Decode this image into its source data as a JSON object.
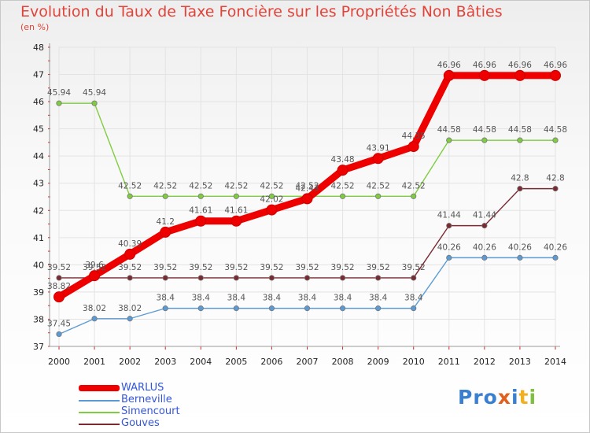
{
  "chart_data": {
    "type": "line",
    "title": "Evolution du Taux de Taxe Foncière sur les Propriétés Non Bâties",
    "subtitle": "(en %)",
    "categories": [
      "2000",
      "2001",
      "2002",
      "2003",
      "2004",
      "2005",
      "2006",
      "2007",
      "2008",
      "2009",
      "2010",
      "2011",
      "2012",
      "2013",
      "2014"
    ],
    "ylim": [
      37,
      48
    ],
    "yticks": [
      "37",
      "38",
      "39",
      "40",
      "41",
      "42",
      "43",
      "44",
      "45",
      "46",
      "47",
      "48"
    ],
    "series": [
      {
        "name": "WARLUS",
        "color": "#ee0000",
        "values": [
          38.82,
          39.6,
          40.39,
          41.2,
          41.61,
          41.61,
          42.02,
          42.43,
          43.48,
          43.91,
          44.35,
          46.96,
          46.96,
          46.96,
          46.96
        ],
        "labels": [
          "38.82",
          "39.6",
          "40.39",
          "41.2",
          "41.61",
          "41.61",
          "42.02",
          "42.43",
          "43.48",
          "43.91",
          "44.35",
          "46.96",
          "46.96",
          "46.96",
          "46.96"
        ]
      },
      {
        "name": "Berneville",
        "color": "#5b9bd5",
        "values": [
          37.45,
          38.02,
          38.02,
          38.4,
          38.4,
          38.4,
          38.4,
          38.4,
          38.4,
          38.4,
          38.4,
          40.26,
          40.26,
          40.26,
          40.26
        ],
        "labels": [
          "37.45",
          "38.02",
          "38.02",
          "38.4",
          "38.4",
          "38.4",
          "38.4",
          "38.4",
          "38.4",
          "38.4",
          "38.4",
          "40.26",
          "40.26",
          "40.26",
          "40.26"
        ]
      },
      {
        "name": "Simencourt",
        "color": "#80cc40",
        "values": [
          45.94,
          45.94,
          42.52,
          42.52,
          42.52,
          42.52,
          42.52,
          42.52,
          42.52,
          42.52,
          42.52,
          44.58,
          44.58,
          44.58,
          44.58
        ],
        "labels": [
          "45.94",
          "45.94",
          "42.52",
          "42.52",
          "42.52",
          "42.52",
          "42.52",
          "42.52",
          "42.52",
          "42.52",
          "42.52",
          "44.58",
          "44.58",
          "44.58",
          "44.58"
        ]
      },
      {
        "name": "Gouves",
        "color": "#7a2a30",
        "values": [
          39.52,
          39.52,
          39.52,
          39.52,
          39.52,
          39.52,
          39.52,
          39.52,
          39.52,
          39.52,
          39.52,
          41.44,
          41.44,
          42.8,
          42.8
        ],
        "labels": [
          "39.52",
          "39.52",
          "39.52",
          "39.52",
          "39.52",
          "39.52",
          "39.52",
          "39.52",
          "39.52",
          "39.52",
          "39.52",
          "41.44",
          "41.44",
          "42.8",
          "42.8"
        ]
      }
    ]
  },
  "legend": {
    "warlus": "WARLUS",
    "berneville": "Berneville",
    "simencourt": "Simencourt",
    "gouves": "Gouves"
  },
  "logo": {
    "p1": "Pro",
    "x": "x",
    "i": "i",
    "t": "t",
    "i2": "i"
  },
  "colors": {
    "title": "#e0443a",
    "axis_red": "#dd2222",
    "legend_text": "#3355dd"
  }
}
